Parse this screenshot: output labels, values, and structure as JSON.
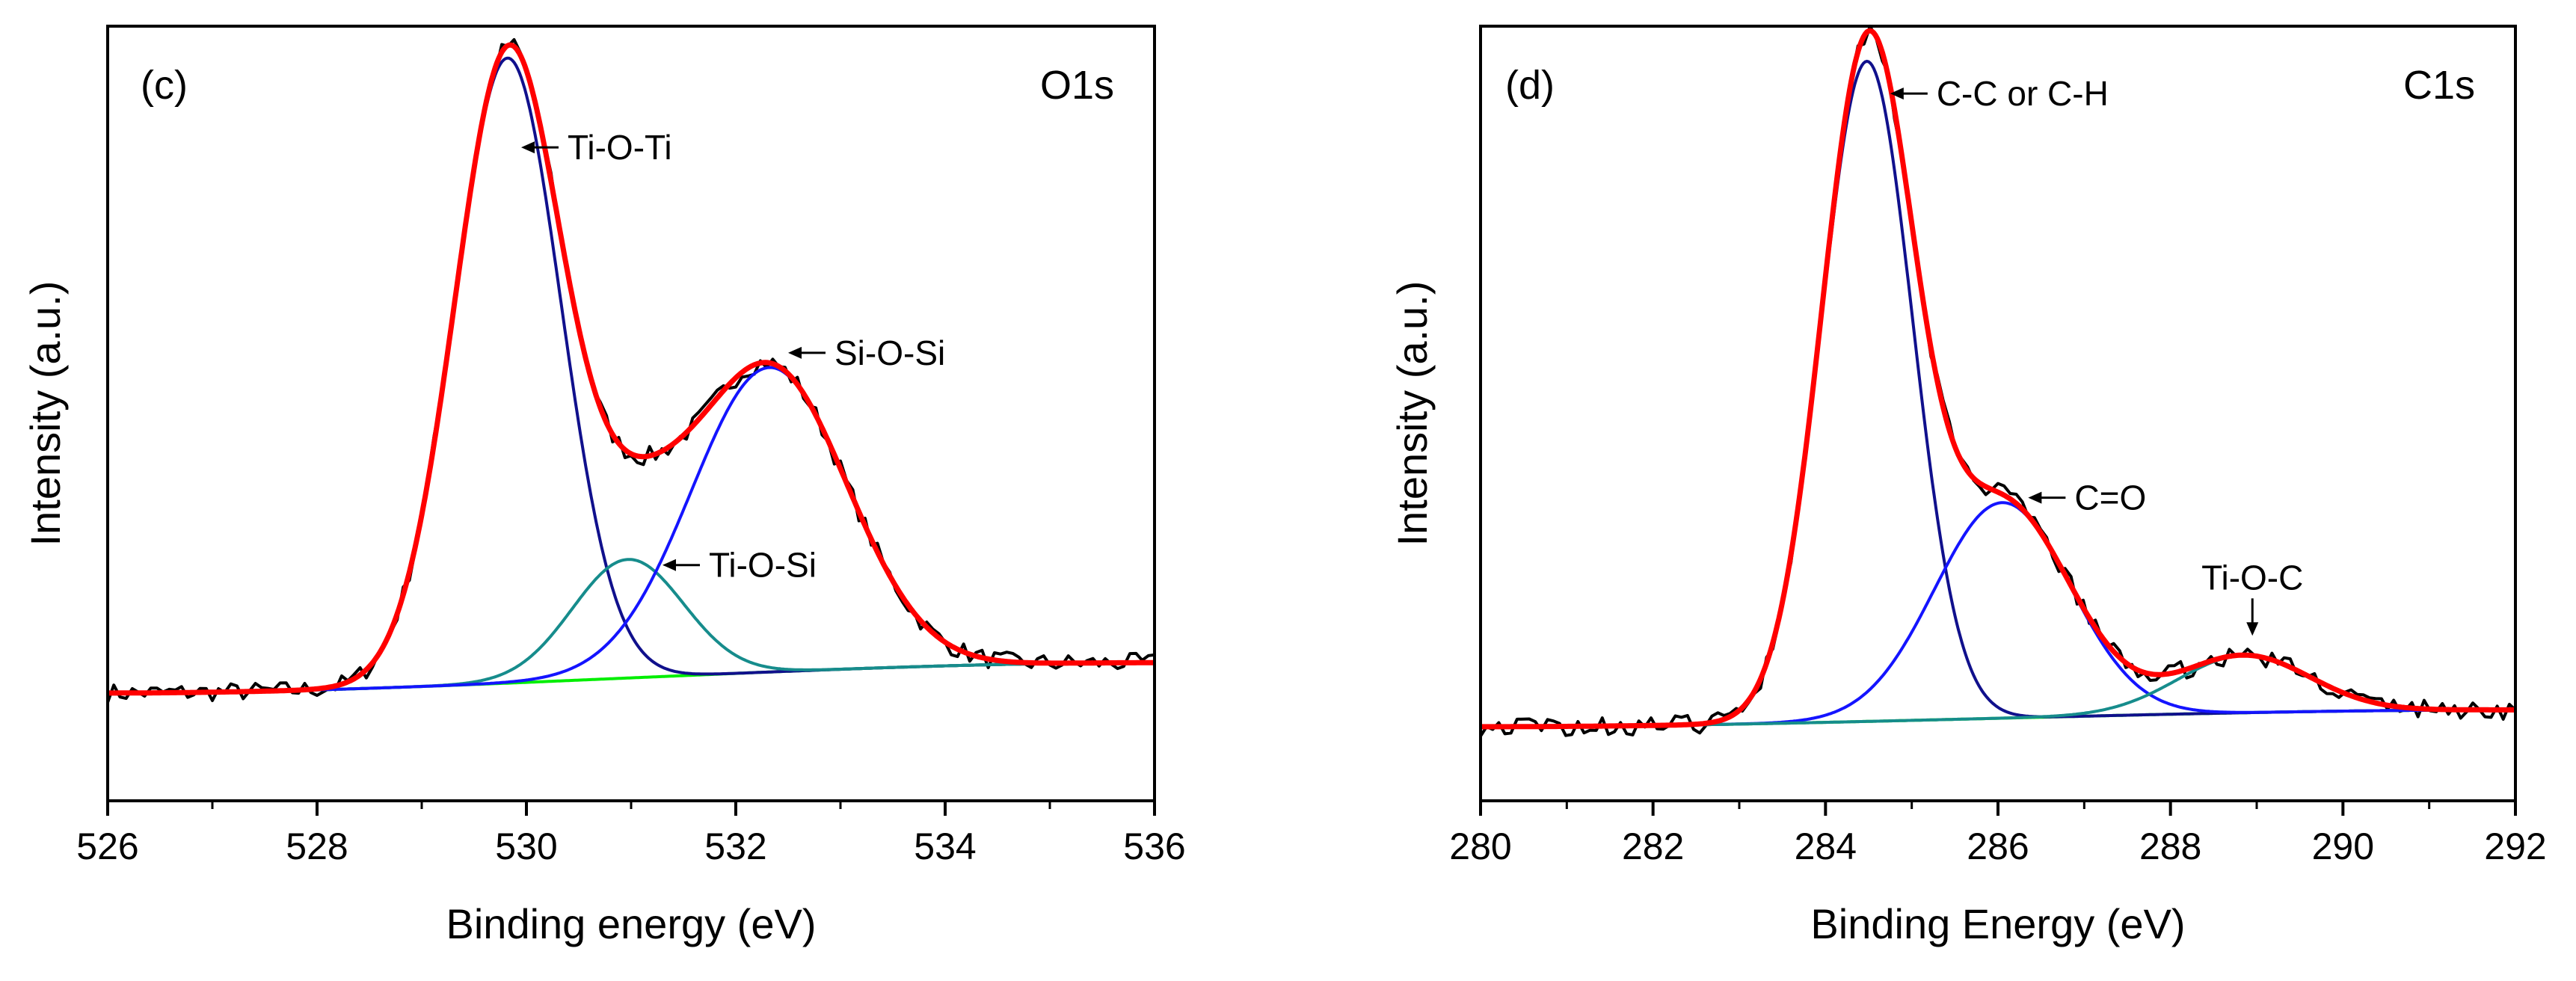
{
  "colors": {
    "raw": "#000000",
    "envelope": "#ff0000",
    "background": "#00ee00",
    "peak_dark": "#10108c",
    "peak_blue": "#1414ff",
    "peak_teal": "#168c8c"
  },
  "chart_data": [
    {
      "type": "line",
      "panel": "(c)",
      "title": "O1s",
      "xlabel": "Binding energy (eV)",
      "ylabel": "Intensity (a.u.)",
      "xlim": [
        526,
        536
      ],
      "ylim": [
        0,
        1.15
      ],
      "xticks": [
        526,
        528,
        530,
        532,
        534,
        536
      ],
      "tick_labels": [
        "526",
        "528",
        "530",
        "532",
        "534",
        "536"
      ],
      "grid": false,
      "background": {
        "name": "Background",
        "start": 0.16,
        "end": 0.205,
        "color": "#00ee00"
      },
      "peaks": [
        {
          "name": "Ti-O-Ti",
          "center": 529.82,
          "height": 0.928,
          "fwhm": 1.2,
          "color": "#10108c"
        },
        {
          "name": "Ti-O-Si",
          "center": 530.97,
          "height": 0.176,
          "fwhm": 1.25,
          "color": "#168c8c"
        },
        {
          "name": "Si-O-Si",
          "center": 532.32,
          "height": 0.452,
          "fwhm": 1.75,
          "color": "#1414ff"
        }
      ],
      "annotations": [
        {
          "text": "Ti-O-Ti",
          "x": 529.95,
          "y": 0.97,
          "direction": "left"
        },
        {
          "text": "Si-O-Si",
          "x": 532.5,
          "y": 0.665,
          "direction": "left"
        },
        {
          "text": "Ti-O-Si",
          "x": 531.3,
          "y": 0.35,
          "direction": "left"
        }
      ]
    },
    {
      "type": "line",
      "panel": "(d)",
      "title": "C1s",
      "xlabel": "Binding Energy (eV)",
      "ylabel": "Intensity (a.u.)",
      "xlim": [
        280,
        292
      ],
      "ylim": [
        0,
        1.15
      ],
      "xticks": [
        280,
        282,
        284,
        286,
        288,
        290,
        292
      ],
      "tick_labels": [
        "280",
        "282",
        "284",
        "286",
        "288",
        "290",
        "292"
      ],
      "grid": false,
      "background": {
        "name": "Background",
        "start": 0.11,
        "end": 0.135,
        "color": "#00ee00"
      },
      "peaks": [
        {
          "name": "C-C or C-H",
          "center": 284.48,
          "height": 0.98,
          "fwhm": 1.25,
          "color": "#10108c"
        },
        {
          "name": "C=O",
          "center": 286.05,
          "height": 0.32,
          "fwhm": 1.85,
          "color": "#1414ff"
        },
        {
          "name": "Ti-O-C",
          "center": 288.85,
          "height": 0.085,
          "fwhm": 1.8,
          "color": "#168c8c"
        }
      ],
      "annotations": [
        {
          "text": "C-C or C-H",
          "x": 284.75,
          "y": 1.05,
          "direction": "left"
        },
        {
          "text": "C=O",
          "x": 286.35,
          "y": 0.45,
          "direction": "left"
        },
        {
          "text": "Ti-O-C",
          "x": 288.95,
          "y": 0.245,
          "direction": "down"
        }
      ]
    }
  ]
}
